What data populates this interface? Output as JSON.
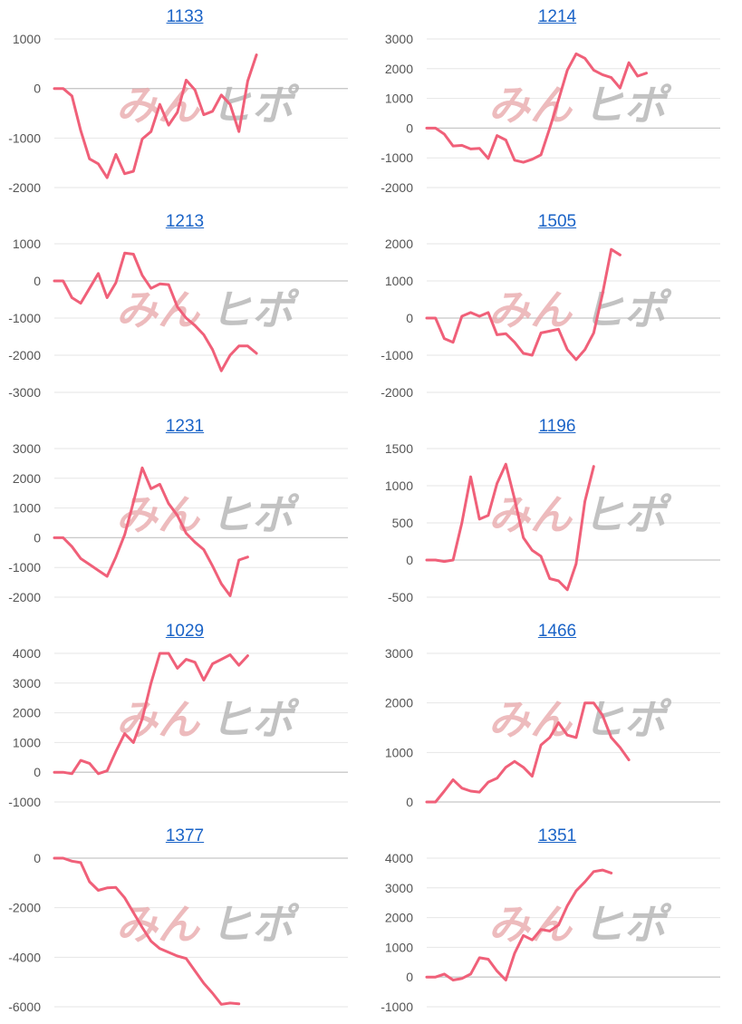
{
  "watermark": {
    "left": "みん",
    "right": "ヒポ"
  },
  "colors": {
    "line": "#f06079",
    "grid": "#e6e6e6",
    "axis": "#c8c8c8",
    "title": "#1a63c7"
  },
  "chart_data": [
    {
      "type": "line",
      "title": "1133",
      "ylim": [
        -2000,
        1000
      ],
      "ticks": [
        1000,
        0,
        -1000,
        -2000
      ],
      "series": [
        {
          "values": [
            0,
            0,
            -150,
            -850,
            -1420,
            -1520,
            -1800,
            -1330,
            -1720,
            -1670,
            -1020,
            -870,
            -320,
            -740,
            -480,
            170,
            -30,
            -530,
            -460,
            -130,
            -320,
            -870,
            150,
            680
          ]
        }
      ]
    },
    {
      "type": "line",
      "title": "1214",
      "ylim": [
        -2000,
        3000
      ],
      "ticks": [
        3000,
        2000,
        1000,
        0,
        -1000,
        -2000
      ],
      "series": [
        {
          "values": [
            0,
            0,
            -200,
            -600,
            -580,
            -700,
            -680,
            -1020,
            -250,
            -400,
            -1080,
            -1150,
            -1050,
            -900,
            0,
            950,
            1950,
            2500,
            2350,
            1950,
            1800,
            1700,
            1350,
            2200,
            1750,
            1850
          ]
        }
      ]
    },
    {
      "type": "line",
      "title": "1213",
      "ylim": [
        -3000,
        1000
      ],
      "ticks": [
        1000,
        0,
        -1000,
        -2000,
        -3000
      ],
      "series": [
        {
          "values": [
            0,
            0,
            -450,
            -600,
            -200,
            200,
            -450,
            -50,
            750,
            720,
            150,
            -200,
            -80,
            -100,
            -700,
            -1000,
            -1200,
            -1450,
            -1850,
            -2420,
            -2000,
            -1750,
            -1750,
            -1950
          ]
        }
      ]
    },
    {
      "type": "line",
      "title": "1505",
      "ylim": [
        -2000,
        2000
      ],
      "ticks": [
        2000,
        1000,
        0,
        -1000,
        -2000
      ],
      "series": [
        {
          "values": [
            0,
            0,
            -550,
            -650,
            50,
            150,
            50,
            150,
            -450,
            -420,
            -650,
            -950,
            -1000,
            -400,
            -350,
            -300,
            -850,
            -1120,
            -850,
            -400,
            650,
            1850,
            1700
          ]
        }
      ]
    },
    {
      "type": "line",
      "title": "1231",
      "ylim": [
        -2000,
        3000
      ],
      "ticks": [
        3000,
        2000,
        1000,
        0,
        -1000,
        -2000
      ],
      "series": [
        {
          "values": [
            0,
            0,
            -300,
            -700,
            -900,
            -1100,
            -1300,
            -650,
            100,
            1200,
            2350,
            1650,
            1800,
            1150,
            750,
            150,
            -150,
            -400,
            -950,
            -1550,
            -1950,
            -750,
            -650
          ]
        }
      ]
    },
    {
      "type": "line",
      "title": "1196",
      "ylim": [
        -500,
        1500
      ],
      "ticks": [
        1500,
        1000,
        500,
        0,
        -500
      ],
      "series": [
        {
          "values": [
            0,
            0,
            -20,
            0,
            500,
            1120,
            550,
            600,
            1030,
            1290,
            820,
            300,
            130,
            50,
            -250,
            -280,
            -400,
            -50,
            790,
            1260
          ]
        }
      ]
    },
    {
      "type": "line",
      "title": "1029",
      "ylim": [
        -1000,
        4000
      ],
      "ticks": [
        4000,
        3000,
        2000,
        1000,
        0,
        -1000
      ],
      "series": [
        {
          "values": [
            0,
            0,
            -50,
            400,
            300,
            -50,
            50,
            700,
            1300,
            1000,
            1800,
            3000,
            4000,
            4000,
            3500,
            3800,
            3700,
            3100,
            3650,
            3800,
            3950,
            3600,
            3920
          ]
        }
      ]
    },
    {
      "type": "line",
      "title": "1466",
      "ylim": [
        0,
        3000
      ],
      "ticks": [
        3000,
        2000,
        1000,
        0
      ],
      "series": [
        {
          "values": [
            0,
            0,
            220,
            450,
            280,
            220,
            200,
            400,
            480,
            700,
            820,
            700,
            520,
            1150,
            1300,
            1600,
            1350,
            1300,
            2000,
            2000,
            1750,
            1300,
            1100,
            850
          ]
        }
      ]
    },
    {
      "type": "line",
      "title": "1377",
      "ylim": [
        -6000,
        0
      ],
      "ticks": [
        0,
        -2000,
        -4000,
        -6000
      ],
      "series": [
        {
          "values": [
            0,
            0,
            -120,
            -180,
            -950,
            -1300,
            -1200,
            -1180,
            -1600,
            -2200,
            -2800,
            -3350,
            -3650,
            -3800,
            -3950,
            -4050,
            -4550,
            -5050,
            -5450,
            -5900,
            -5850,
            -5880
          ]
        }
      ]
    },
    {
      "type": "line",
      "title": "1351",
      "ylim": [
        -1000,
        4000
      ],
      "ticks": [
        4000,
        3000,
        2000,
        1000,
        0,
        -1000
      ],
      "series": [
        {
          "values": [
            0,
            0,
            100,
            -100,
            -50,
            100,
            650,
            600,
            200,
            -100,
            800,
            1400,
            1250,
            1600,
            1550,
            1750,
            2400,
            2900,
            3200,
            3550,
            3600,
            3500
          ]
        }
      ]
    }
  ]
}
